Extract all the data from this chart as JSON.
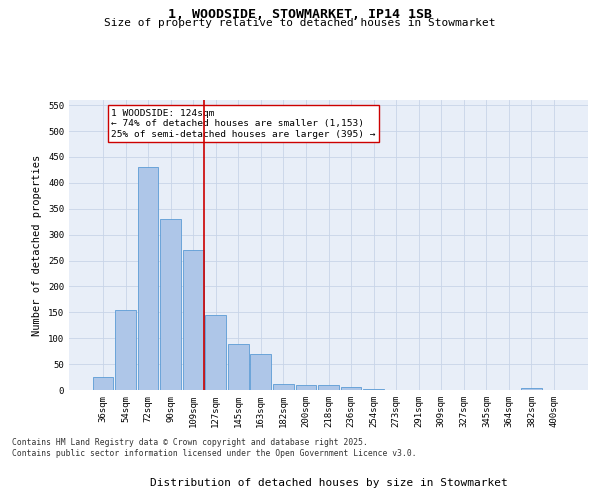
{
  "title": "1, WOODSIDE, STOWMARKET, IP14 1SB",
  "subtitle": "Size of property relative to detached houses in Stowmarket",
  "xlabel": "Distribution of detached houses by size in Stowmarket",
  "ylabel": "Number of detached properties",
  "categories": [
    "36sqm",
    "54sqm",
    "72sqm",
    "90sqm",
    "109sqm",
    "127sqm",
    "145sqm",
    "163sqm",
    "182sqm",
    "200sqm",
    "218sqm",
    "236sqm",
    "254sqm",
    "273sqm",
    "291sqm",
    "309sqm",
    "327sqm",
    "345sqm",
    "364sqm",
    "382sqm",
    "400sqm"
  ],
  "values": [
    25,
    155,
    430,
    330,
    270,
    145,
    88,
    70,
    12,
    10,
    10,
    5,
    2,
    0,
    0,
    0,
    0,
    0,
    0,
    3,
    0
  ],
  "bar_color": "#aec6e8",
  "bar_edge_color": "#5b9bd5",
  "vline_index": 5,
  "vline_color": "#cc0000",
  "annotation_text": "1 WOODSIDE: 124sqm\n← 74% of detached houses are smaller (1,153)\n25% of semi-detached houses are larger (395) →",
  "annotation_box_color": "#ffffff",
  "annotation_box_edge": "#cc0000",
  "ylim": [
    0,
    560
  ],
  "yticks": [
    0,
    50,
    100,
    150,
    200,
    250,
    300,
    350,
    400,
    450,
    500,
    550
  ],
  "grid_color": "#c8d4e8",
  "background_color": "#e8eef8",
  "footer": "Contains HM Land Registry data © Crown copyright and database right 2025.\nContains public sector information licensed under the Open Government Licence v3.0.",
  "title_fontsize": 9.5,
  "subtitle_fontsize": 8,
  "axis_label_fontsize": 7.5,
  "tick_fontsize": 6.5,
  "annotation_fontsize": 6.8,
  "footer_fontsize": 5.8
}
